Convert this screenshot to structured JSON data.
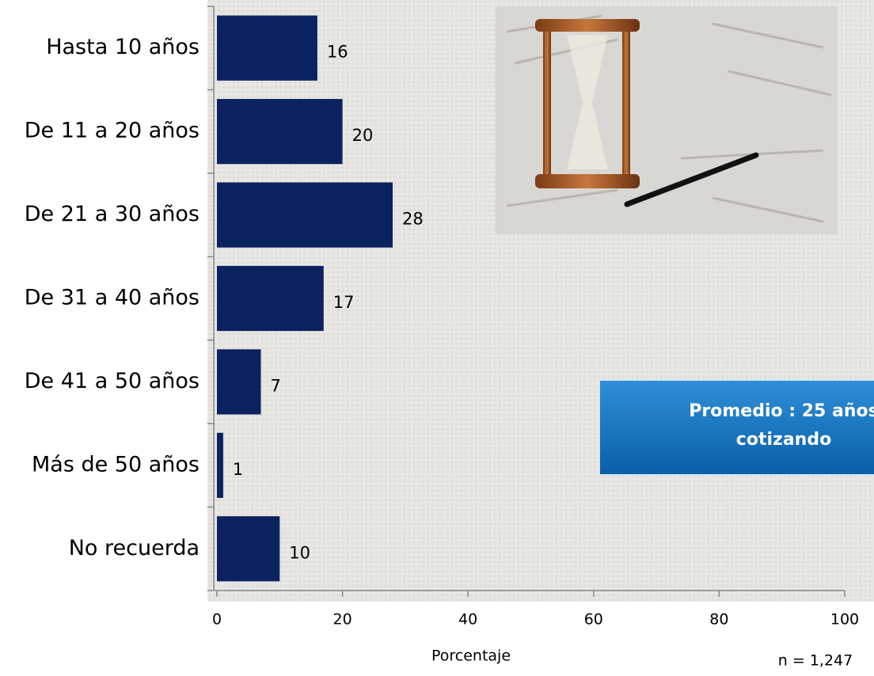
{
  "chart_data": {
    "type": "bar",
    "orientation": "horizontal",
    "categories": [
      "Hasta 10 años",
      "De 11 a 20 años",
      "De 21 a 30 años",
      "De 31 a 40 años",
      "De 41 a 50 años",
      "Más de 50 años",
      "No recuerda"
    ],
    "values": [
      16,
      20,
      28,
      17,
      7,
      1,
      10
    ],
    "color": "#0b2260",
    "xlabel": "Porcentaje",
    "xlim": [
      0,
      100
    ],
    "xticks": [
      0,
      20,
      40,
      60,
      80,
      100
    ],
    "note": "n = 1,247",
    "callout": [
      "Promedio : 25 años",
      "cotizando"
    ]
  }
}
